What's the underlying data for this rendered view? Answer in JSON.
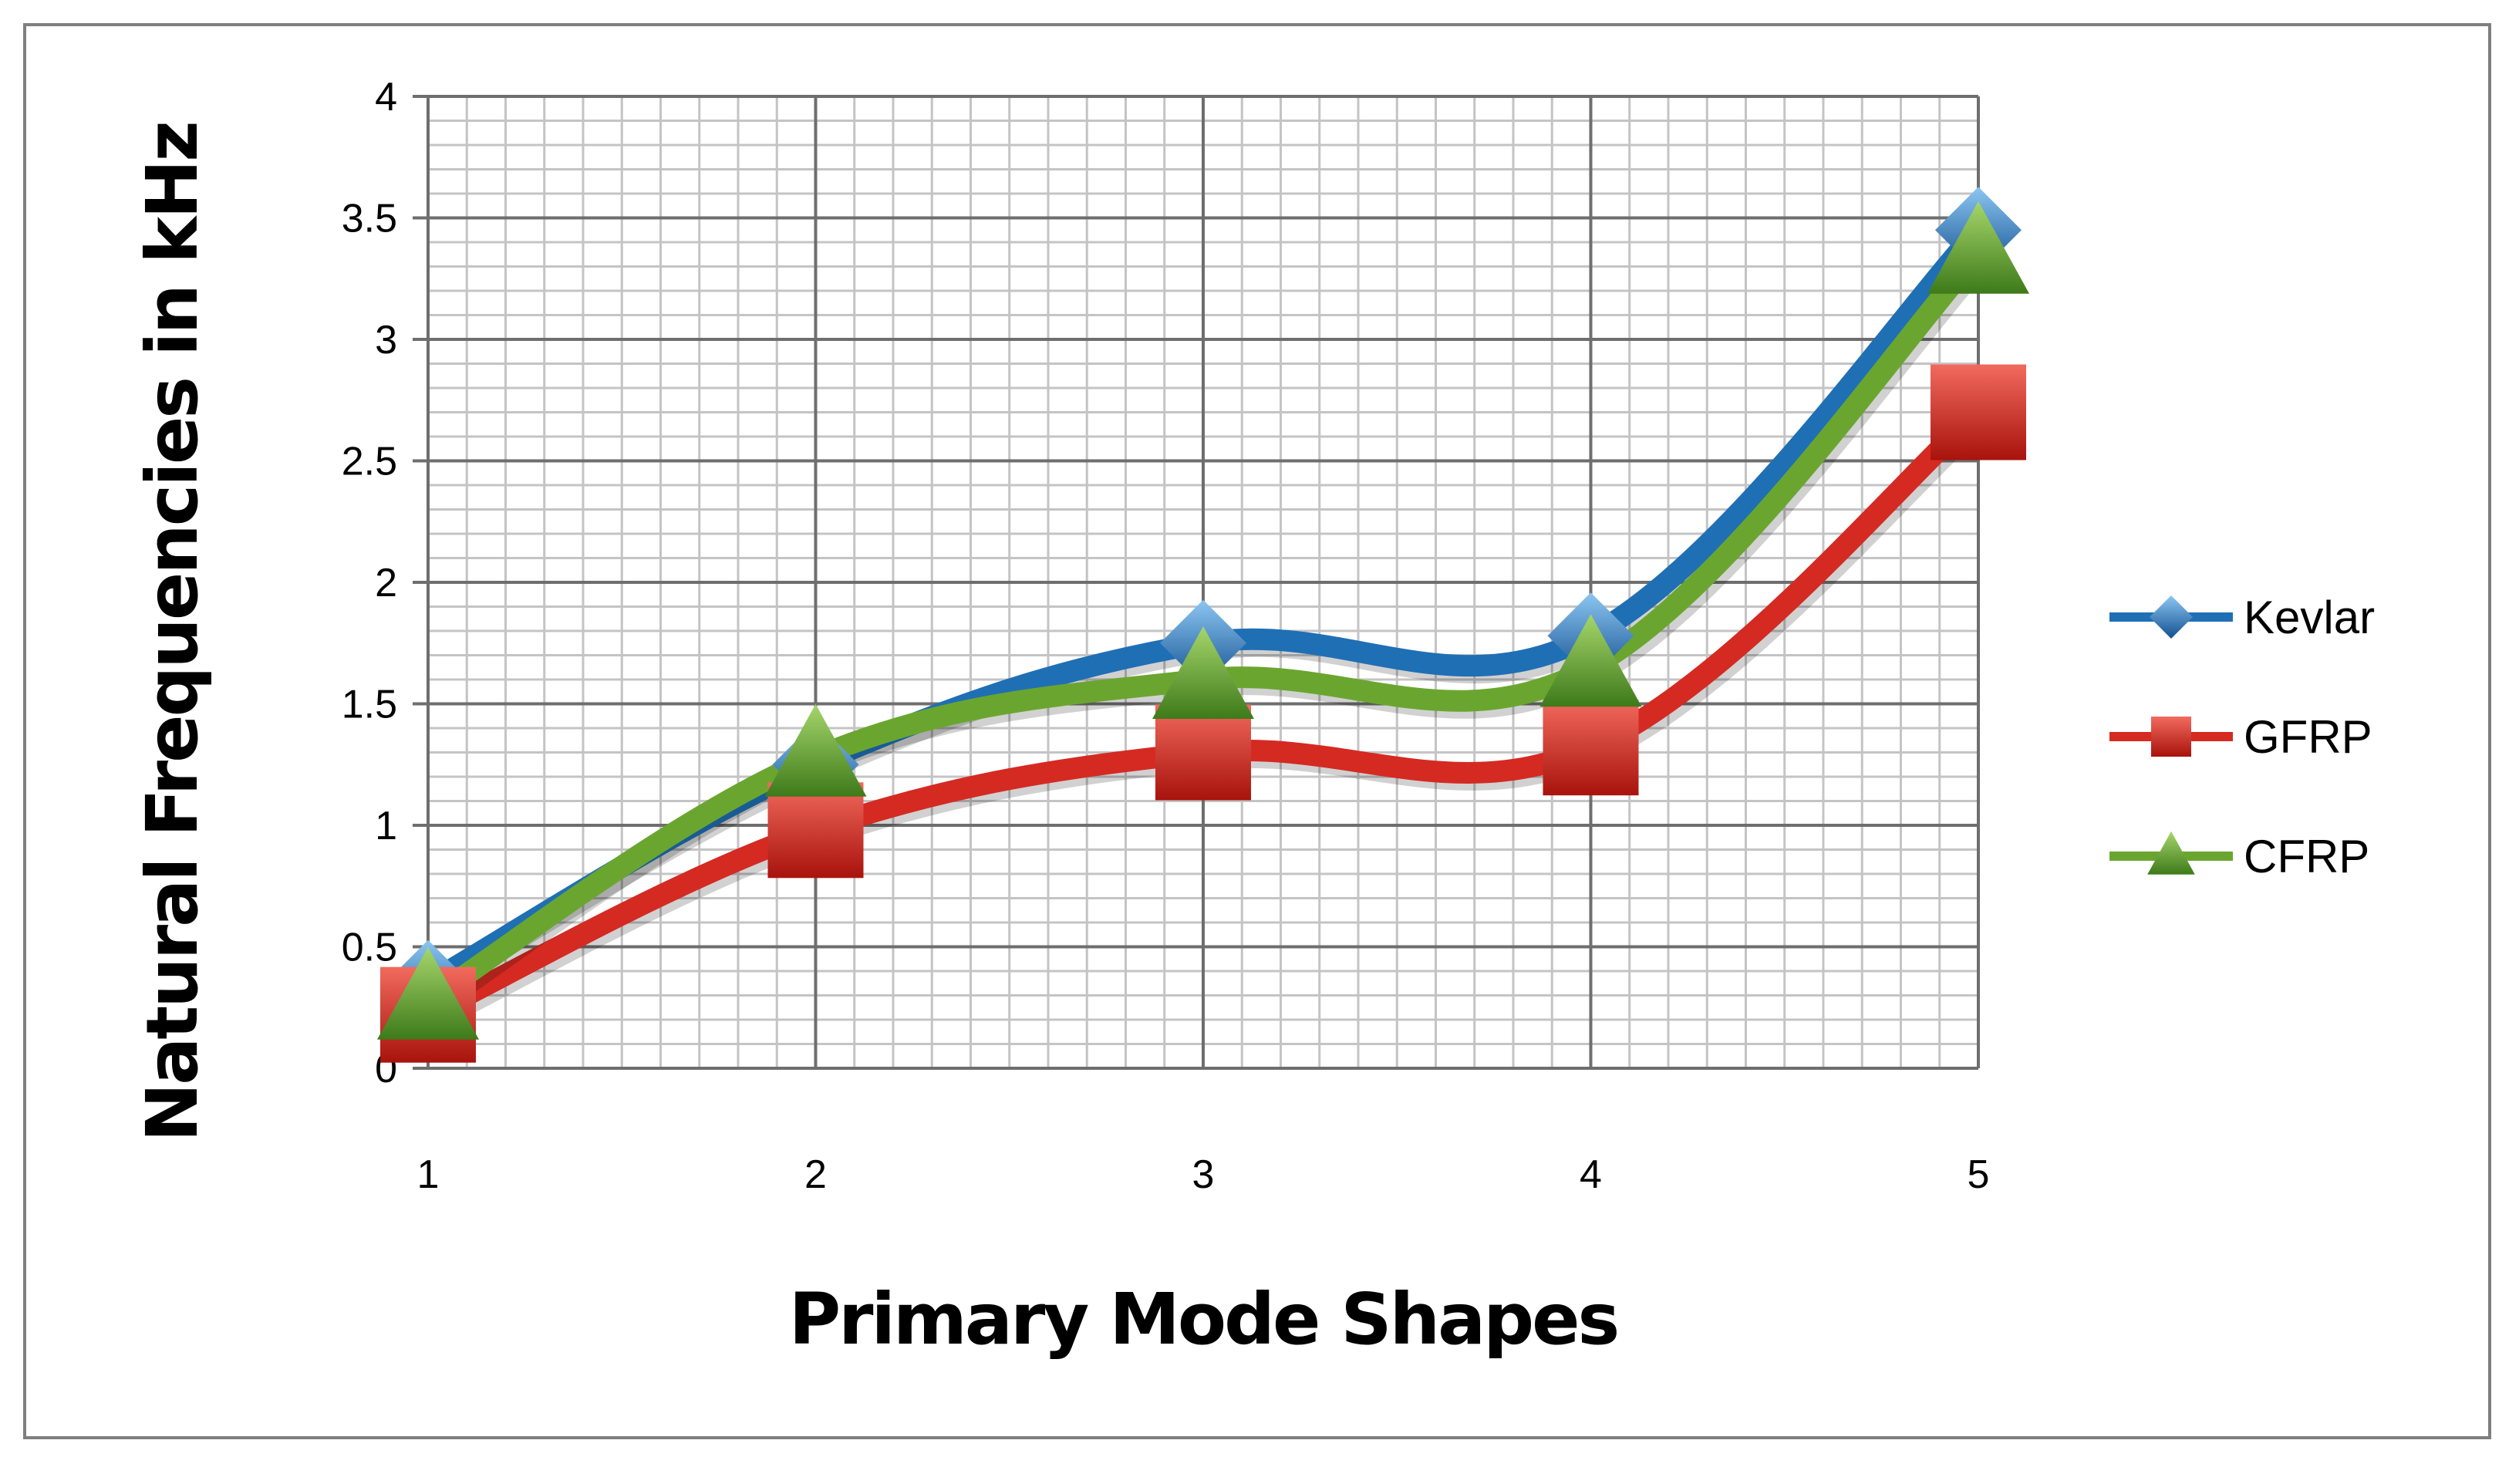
{
  "chart_data": {
    "type": "line",
    "title": "",
    "xlabel": "Primary Mode Shapes",
    "ylabel": "Natural Frequencies in kHz",
    "categories": [
      "1",
      "2",
      "3",
      "4",
      "5"
    ],
    "yticks": [
      "0",
      "0.5",
      "1",
      "1.5",
      "2",
      "2.5",
      "3",
      "3.5",
      "4"
    ],
    "ylim": [
      0,
      4
    ],
    "grid": true,
    "legend": "right",
    "series": [
      {
        "name": "Kevlar",
        "values": [
          0.35,
          1.25,
          1.75,
          1.78,
          3.45
        ],
        "color": "#1f6fb5",
        "marker": "diamond"
      },
      {
        "name": "GFRP",
        "values": [
          0.22,
          0.98,
          1.3,
          1.32,
          2.7
        ],
        "color": "#d42a22",
        "marker": "square"
      },
      {
        "name": "CFRP",
        "values": [
          0.28,
          1.28,
          1.6,
          1.65,
          3.35
        ],
        "color": "#6aa62f",
        "marker": "triangle"
      }
    ]
  }
}
